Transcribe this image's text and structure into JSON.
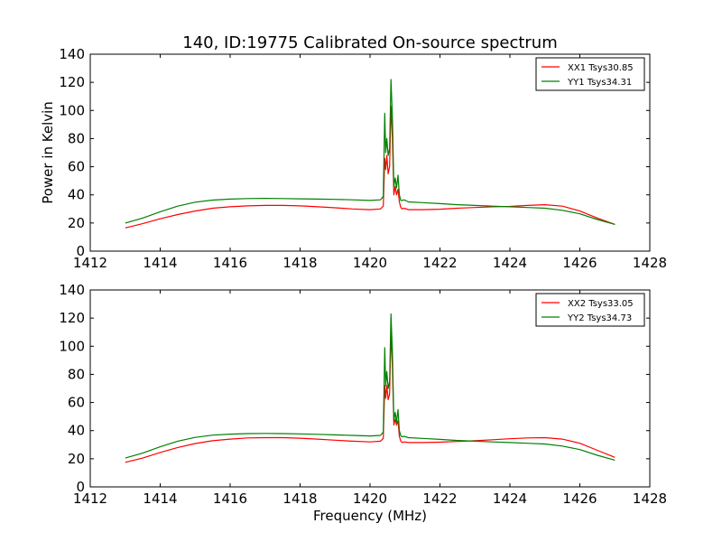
{
  "chart_data": [
    {
      "type": "line",
      "title": "140, ID:19775 Calibrated On-source spectrum",
      "xlabel": "",
      "ylabel": "Power in Kelvin",
      "xlim": [
        1412,
        1428
      ],
      "ylim": [
        0,
        140
      ],
      "xticks": [
        1412,
        1414,
        1416,
        1418,
        1420,
        1422,
        1424,
        1426,
        1428
      ],
      "yticks": [
        0,
        20,
        40,
        60,
        80,
        100,
        120,
        140
      ],
      "legend_position": "top-right",
      "series": [
        {
          "name": "XX1 Tsys30.85",
          "color": "#ff0000",
          "x": [
            1413.0,
            1413.5,
            1414.0,
            1414.5,
            1415.0,
            1415.5,
            1416.0,
            1416.5,
            1417.0,
            1417.5,
            1418.0,
            1418.5,
            1419.0,
            1419.5,
            1420.0,
            1420.3,
            1420.38,
            1420.42,
            1420.45,
            1420.48,
            1420.52,
            1420.56,
            1420.6,
            1420.64,
            1420.68,
            1420.72,
            1420.76,
            1420.8,
            1420.84,
            1420.88,
            1420.92,
            1420.97,
            1421.1,
            1421.5,
            1422.0,
            1422.5,
            1423.0,
            1423.5,
            1424.0,
            1424.5,
            1425.0,
            1425.5,
            1426.0,
            1426.5,
            1427.0
          ],
          "y": [
            16.5,
            19.5,
            23.0,
            26.0,
            28.5,
            30.5,
            31.5,
            32.2,
            32.5,
            32.5,
            32.2,
            31.5,
            30.8,
            30.0,
            29.5,
            30.0,
            32.0,
            66.0,
            58.0,
            68.0,
            55.0,
            60.0,
            103.0,
            80.0,
            40.0,
            46.0,
            40.0,
            44.0,
            35.0,
            31.0,
            30.0,
            30.5,
            29.5,
            29.5,
            29.8,
            30.5,
            31.0,
            31.5,
            31.8,
            32.5,
            33.0,
            32.0,
            28.5,
            23.5,
            19.0
          ]
        },
        {
          "name": "YY1 Tsys34.31",
          "color": "#008000",
          "x": [
            1413.0,
            1413.5,
            1414.0,
            1414.5,
            1415.0,
            1415.5,
            1416.0,
            1416.5,
            1417.0,
            1417.5,
            1418.0,
            1418.5,
            1419.0,
            1419.5,
            1420.0,
            1420.3,
            1420.38,
            1420.42,
            1420.45,
            1420.48,
            1420.52,
            1420.56,
            1420.6,
            1420.64,
            1420.68,
            1420.72,
            1420.76,
            1420.8,
            1420.84,
            1420.88,
            1420.92,
            1420.97,
            1421.1,
            1421.5,
            1422.0,
            1422.5,
            1423.0,
            1423.5,
            1424.0,
            1424.5,
            1425.0,
            1425.5,
            1426.0,
            1426.5,
            1427.0
          ],
          "y": [
            20.0,
            23.5,
            28.0,
            32.0,
            34.8,
            36.3,
            37.0,
            37.4,
            37.5,
            37.4,
            37.2,
            37.0,
            36.8,
            36.5,
            36.0,
            36.5,
            39.0,
            98.0,
            70.0,
            80.0,
            68.0,
            73.0,
            122.0,
            95.0,
            46.0,
            52.0,
            45.0,
            54.0,
            40.0,
            36.0,
            36.0,
            36.5,
            35.0,
            34.5,
            33.8,
            33.0,
            32.5,
            32.0,
            31.5,
            31.0,
            30.5,
            29.0,
            26.5,
            22.5,
            19.0
          ]
        }
      ]
    },
    {
      "type": "line",
      "title": "",
      "xlabel": "Frequency (MHz)",
      "ylabel": "",
      "xlim": [
        1412,
        1428
      ],
      "ylim": [
        0,
        140
      ],
      "xticks": [
        1412,
        1414,
        1416,
        1418,
        1420,
        1422,
        1424,
        1426,
        1428
      ],
      "yticks": [
        0,
        20,
        40,
        60,
        80,
        100,
        120,
        140
      ],
      "legend_position": "top-right",
      "series": [
        {
          "name": "XX2 Tsys33.05",
          "color": "#ff0000",
          "x": [
            1413.0,
            1413.5,
            1414.0,
            1414.5,
            1415.0,
            1415.5,
            1416.0,
            1416.5,
            1417.0,
            1417.5,
            1418.0,
            1418.5,
            1419.0,
            1419.5,
            1420.0,
            1420.3,
            1420.38,
            1420.42,
            1420.45,
            1420.48,
            1420.52,
            1420.56,
            1420.6,
            1420.64,
            1420.68,
            1420.72,
            1420.76,
            1420.8,
            1420.84,
            1420.88,
            1420.92,
            1420.97,
            1421.1,
            1421.5,
            1422.0,
            1422.5,
            1423.0,
            1423.5,
            1424.0,
            1424.5,
            1425.0,
            1425.5,
            1426.0,
            1426.5,
            1427.0
          ],
          "y": [
            17.5,
            20.5,
            24.5,
            28.0,
            30.8,
            32.8,
            34.0,
            34.8,
            35.0,
            35.0,
            34.6,
            34.0,
            33.2,
            32.5,
            32.0,
            32.5,
            34.5,
            72.0,
            63.0,
            72.0,
            62.0,
            66.0,
            110.0,
            85.0,
            44.0,
            48.0,
            44.0,
            47.0,
            36.0,
            32.5,
            31.5,
            32.0,
            31.5,
            31.5,
            31.8,
            32.3,
            32.8,
            33.5,
            34.2,
            34.8,
            35.0,
            34.0,
            31.0,
            26.0,
            21.0
          ]
        },
        {
          "name": "YY2 Tsys34.73",
          "color": "#008000",
          "x": [
            1413.0,
            1413.5,
            1414.0,
            1414.5,
            1415.0,
            1415.5,
            1416.0,
            1416.5,
            1417.0,
            1417.5,
            1418.0,
            1418.5,
            1419.0,
            1419.5,
            1420.0,
            1420.3,
            1420.38,
            1420.42,
            1420.45,
            1420.48,
            1420.52,
            1420.56,
            1420.6,
            1420.64,
            1420.68,
            1420.72,
            1420.76,
            1420.8,
            1420.84,
            1420.88,
            1420.92,
            1420.97,
            1421.1,
            1421.5,
            1422.0,
            1422.5,
            1423.0,
            1423.5,
            1424.0,
            1424.5,
            1425.0,
            1425.5,
            1426.0,
            1426.5,
            1427.0
          ],
          "y": [
            20.5,
            24.0,
            28.5,
            32.5,
            35.2,
            36.8,
            37.5,
            37.9,
            38.0,
            37.9,
            37.7,
            37.4,
            37.0,
            36.6,
            36.2,
            36.6,
            39.0,
            99.0,
            72.0,
            82.0,
            70.0,
            75.0,
            123.0,
            96.0,
            47.0,
            53.0,
            46.0,
            55.0,
            40.0,
            36.5,
            35.5,
            36.0,
            35.0,
            34.5,
            33.8,
            33.0,
            32.5,
            32.0,
            31.5,
            31.0,
            30.5,
            29.0,
            26.5,
            22.5,
            19.0
          ]
        }
      ]
    }
  ]
}
